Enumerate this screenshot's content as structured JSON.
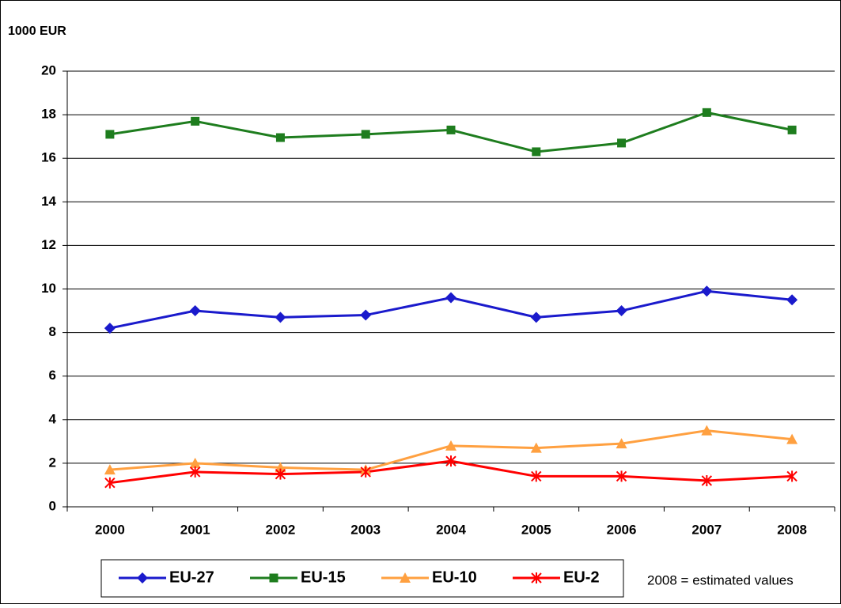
{
  "chart_data": {
    "type": "line",
    "y_label": "1000 EUR",
    "annotation": "2008 = estimated values",
    "categories": [
      "2000",
      "2001",
      "2002",
      "2003",
      "2004",
      "2005",
      "2006",
      "2007",
      "2008"
    ],
    "series": [
      {
        "name": "EU-27",
        "color": "#1a1acc",
        "marker": "diamond",
        "values": [
          8.2,
          9.0,
          8.7,
          8.8,
          9.6,
          8.7,
          9.0,
          9.9,
          9.5
        ]
      },
      {
        "name": "EU-15",
        "color": "#1e7d1e",
        "marker": "square",
        "values": [
          17.1,
          17.7,
          16.95,
          17.1,
          17.3,
          16.3,
          16.7,
          18.1,
          17.3
        ]
      },
      {
        "name": "EU-10",
        "color": "#ffa040",
        "marker": "triangle",
        "values": [
          1.7,
          2.0,
          1.8,
          1.7,
          2.8,
          2.7,
          2.9,
          3.5,
          3.1
        ]
      },
      {
        "name": "EU-2",
        "color": "#ff0000",
        "marker": "star",
        "values": [
          1.1,
          1.6,
          1.5,
          1.6,
          2.1,
          1.4,
          1.4,
          1.2,
          1.4
        ]
      }
    ],
    "ylim": [
      0,
      20
    ],
    "yticks": [
      0,
      2,
      4,
      6,
      8,
      10,
      12,
      14,
      16,
      18,
      20
    ],
    "grid": true
  }
}
